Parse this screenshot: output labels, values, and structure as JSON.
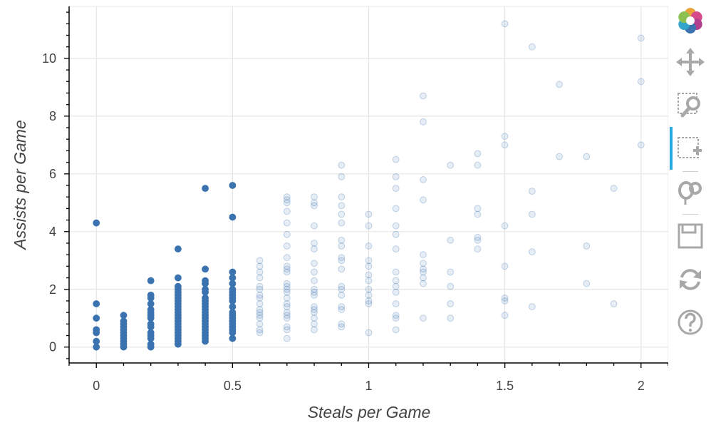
{
  "chart_data": {
    "type": "scatter",
    "title": "",
    "xlabel": "Steals per Game",
    "ylabel": "Assists per Game",
    "xlim": [
      -0.1,
      2.1
    ],
    "ylim": [
      -0.55,
      11.8
    ],
    "x_ticks": [
      0,
      0.5,
      1,
      1.5,
      2
    ],
    "x_tick_labels": [
      "0",
      "0.5",
      "1",
      "1.5",
      "2"
    ],
    "y_ticks": [
      0,
      2,
      4,
      6,
      8,
      10
    ],
    "y_tick_labels": [
      "0",
      "2",
      "4",
      "6",
      "8",
      "10"
    ],
    "grid": true,
    "legend": "none",
    "series": [
      {
        "role": "selected",
        "color": "#3a73b0",
        "opacity": 1.0,
        "points": [
          [
            0,
            0
          ],
          [
            0,
            0.2
          ],
          [
            0,
            0.5
          ],
          [
            0,
            0.6
          ],
          [
            0,
            1.0
          ],
          [
            0,
            1.5
          ],
          [
            0,
            4.3
          ],
          [
            0.1,
            0
          ],
          [
            0.1,
            0.1
          ],
          [
            0.1,
            0.2
          ],
          [
            0.1,
            0.3
          ],
          [
            0.1,
            0.4
          ],
          [
            0.1,
            0.5
          ],
          [
            0.1,
            0.6
          ],
          [
            0.1,
            0.7
          ],
          [
            0.1,
            0.8
          ],
          [
            0.1,
            0.9
          ],
          [
            0.1,
            1.1
          ],
          [
            0.2,
            0
          ],
          [
            0.2,
            0.1
          ],
          [
            0.2,
            0.3
          ],
          [
            0.2,
            0.4
          ],
          [
            0.2,
            0.5
          ],
          [
            0.2,
            0.7
          ],
          [
            0.2,
            0.8
          ],
          [
            0.2,
            1.0
          ],
          [
            0.2,
            1.1
          ],
          [
            0.2,
            1.2
          ],
          [
            0.2,
            1.3
          ],
          [
            0.2,
            1.5
          ],
          [
            0.2,
            1.7
          ],
          [
            0.2,
            1.8
          ],
          [
            0.2,
            2.3
          ],
          [
            0.3,
            0.1
          ],
          [
            0.3,
            0.2
          ],
          [
            0.3,
            0.3
          ],
          [
            0.3,
            0.4
          ],
          [
            0.3,
            0.5
          ],
          [
            0.3,
            0.6
          ],
          [
            0.3,
            0.7
          ],
          [
            0.3,
            0.8
          ],
          [
            0.3,
            0.9
          ],
          [
            0.3,
            1.0
          ],
          [
            0.3,
            1.1
          ],
          [
            0.3,
            1.2
          ],
          [
            0.3,
            1.3
          ],
          [
            0.3,
            1.4
          ],
          [
            0.3,
            1.5
          ],
          [
            0.3,
            1.6
          ],
          [
            0.3,
            1.7
          ],
          [
            0.3,
            1.8
          ],
          [
            0.3,
            1.9
          ],
          [
            0.3,
            2.0
          ],
          [
            0.3,
            2.1
          ],
          [
            0.3,
            2.4
          ],
          [
            0.3,
            3.4
          ],
          [
            0.4,
            0.2
          ],
          [
            0.4,
            0.3
          ],
          [
            0.4,
            0.4
          ],
          [
            0.4,
            0.5
          ],
          [
            0.4,
            0.6
          ],
          [
            0.4,
            0.7
          ],
          [
            0.4,
            0.8
          ],
          [
            0.4,
            0.9
          ],
          [
            0.4,
            1.0
          ],
          [
            0.4,
            1.1
          ],
          [
            0.4,
            1.2
          ],
          [
            0.4,
            1.3
          ],
          [
            0.4,
            1.4
          ],
          [
            0.4,
            1.5
          ],
          [
            0.4,
            1.6
          ],
          [
            0.4,
            1.7
          ],
          [
            0.4,
            1.9
          ],
          [
            0.4,
            2.0
          ],
          [
            0.4,
            2.2
          ],
          [
            0.4,
            2.3
          ],
          [
            0.4,
            2.7
          ],
          [
            0.4,
            5.5
          ],
          [
            0.5,
            0.3
          ],
          [
            0.5,
            0.5
          ],
          [
            0.5,
            0.6
          ],
          [
            0.5,
            0.7
          ],
          [
            0.5,
            0.8
          ],
          [
            0.5,
            0.9
          ],
          [
            0.5,
            1.0
          ],
          [
            0.5,
            1.1
          ],
          [
            0.5,
            1.2
          ],
          [
            0.5,
            1.4
          ],
          [
            0.5,
            1.6
          ],
          [
            0.5,
            1.7
          ],
          [
            0.5,
            1.8
          ],
          [
            0.5,
            1.9
          ],
          [
            0.5,
            2.0
          ],
          [
            0.5,
            2.2
          ],
          [
            0.5,
            2.4
          ],
          [
            0.5,
            2.6
          ],
          [
            0.5,
            4.5
          ],
          [
            0.5,
            5.6
          ]
        ]
      },
      {
        "role": "unselected",
        "color": "#3a73b0",
        "opacity": 0.13,
        "points": [
          [
            0.6,
            0.5
          ],
          [
            0.6,
            0.6
          ],
          [
            0.6,
            0.8
          ],
          [
            0.6,
            1.0
          ],
          [
            0.6,
            1.1
          ],
          [
            0.6,
            1.2
          ],
          [
            0.6,
            1.3
          ],
          [
            0.6,
            1.5
          ],
          [
            0.6,
            1.7
          ],
          [
            0.6,
            1.8
          ],
          [
            0.6,
            2.0
          ],
          [
            0.6,
            2.1
          ],
          [
            0.6,
            2.4
          ],
          [
            0.6,
            2.6
          ],
          [
            0.6,
            2.8
          ],
          [
            0.6,
            3.0
          ],
          [
            0.7,
            0.3
          ],
          [
            0.7,
            0.6
          ],
          [
            0.7,
            0.7
          ],
          [
            0.7,
            1.0
          ],
          [
            0.7,
            1.1
          ],
          [
            0.7,
            1.2
          ],
          [
            0.7,
            1.4
          ],
          [
            0.7,
            1.5
          ],
          [
            0.7,
            1.7
          ],
          [
            0.7,
            1.9
          ],
          [
            0.7,
            2.0
          ],
          [
            0.7,
            2.1
          ],
          [
            0.7,
            2.2
          ],
          [
            0.7,
            2.6
          ],
          [
            0.7,
            2.7
          ],
          [
            0.7,
            2.8
          ],
          [
            0.7,
            3.1
          ],
          [
            0.7,
            3.5
          ],
          [
            0.7,
            3.9
          ],
          [
            0.7,
            4.3
          ],
          [
            0.7,
            4.7
          ],
          [
            0.7,
            5.0
          ],
          [
            0.7,
            5.1
          ],
          [
            0.7,
            5.2
          ],
          [
            0.8,
            0.6
          ],
          [
            0.8,
            0.8
          ],
          [
            0.8,
            1.0
          ],
          [
            0.8,
            1.2
          ],
          [
            0.8,
            1.3
          ],
          [
            0.8,
            1.4
          ],
          [
            0.8,
            1.8
          ],
          [
            0.8,
            1.9
          ],
          [
            0.8,
            2.0
          ],
          [
            0.8,
            2.3
          ],
          [
            0.8,
            2.6
          ],
          [
            0.8,
            2.9
          ],
          [
            0.8,
            3.4
          ],
          [
            0.8,
            3.6
          ],
          [
            0.8,
            4.2
          ],
          [
            0.8,
            4.9
          ],
          [
            0.8,
            5.0
          ],
          [
            0.8,
            5.2
          ],
          [
            0.9,
            0.7
          ],
          [
            0.9,
            0.8
          ],
          [
            0.9,
            1.3
          ],
          [
            0.9,
            1.4
          ],
          [
            0.9,
            1.8
          ],
          [
            0.9,
            2.0
          ],
          [
            0.9,
            2.1
          ],
          [
            0.9,
            2.7
          ],
          [
            0.9,
            3.0
          ],
          [
            0.9,
            3.1
          ],
          [
            0.9,
            3.5
          ],
          [
            0.9,
            3.7
          ],
          [
            0.9,
            4.3
          ],
          [
            0.9,
            4.6
          ],
          [
            0.9,
            4.9
          ],
          [
            0.9,
            5.2
          ],
          [
            0.9,
            5.9
          ],
          [
            0.9,
            6.3
          ],
          [
            1.0,
            0.5
          ],
          [
            1.0,
            1.5
          ],
          [
            1.0,
            1.6
          ],
          [
            1.0,
            1.8
          ],
          [
            1.0,
            2.0
          ],
          [
            1.0,
            2.3
          ],
          [
            1.0,
            2.5
          ],
          [
            1.0,
            2.8
          ],
          [
            1.0,
            3.0
          ],
          [
            1.0,
            3.5
          ],
          [
            1.0,
            4.2
          ],
          [
            1.0,
            4.6
          ],
          [
            1.1,
            0.6
          ],
          [
            1.1,
            1.0
          ],
          [
            1.1,
            1.1
          ],
          [
            1.1,
            1.5
          ],
          [
            1.1,
            1.9
          ],
          [
            1.1,
            2.1
          ],
          [
            1.1,
            2.3
          ],
          [
            1.1,
            2.6
          ],
          [
            1.1,
            3.4
          ],
          [
            1.1,
            3.9
          ],
          [
            1.1,
            4.2
          ],
          [
            1.1,
            4.8
          ],
          [
            1.1,
            5.5
          ],
          [
            1.1,
            5.9
          ],
          [
            1.1,
            6.5
          ],
          [
            1.2,
            1.0
          ],
          [
            1.2,
            2.2
          ],
          [
            1.2,
            2.4
          ],
          [
            1.2,
            2.6
          ],
          [
            1.2,
            2.7
          ],
          [
            1.2,
            2.9
          ],
          [
            1.2,
            3.2
          ],
          [
            1.2,
            5.1
          ],
          [
            1.2,
            5.8
          ],
          [
            1.2,
            7.8
          ],
          [
            1.2,
            8.7
          ],
          [
            1.3,
            1.0
          ],
          [
            1.3,
            1.5
          ],
          [
            1.3,
            2.1
          ],
          [
            1.3,
            2.6
          ],
          [
            1.3,
            3.7
          ],
          [
            1.3,
            6.3
          ],
          [
            1.4,
            3.4
          ],
          [
            1.4,
            3.7
          ],
          [
            1.4,
            3.8
          ],
          [
            1.4,
            4.6
          ],
          [
            1.4,
            4.8
          ],
          [
            1.4,
            6.3
          ],
          [
            1.4,
            6.7
          ],
          [
            1.5,
            1.1
          ],
          [
            1.5,
            1.6
          ],
          [
            1.5,
            1.7
          ],
          [
            1.5,
            2.8
          ],
          [
            1.5,
            4.2
          ],
          [
            1.5,
            7.0
          ],
          [
            1.5,
            7.3
          ],
          [
            1.5,
            11.2
          ],
          [
            1.6,
            1.4
          ],
          [
            1.6,
            3.3
          ],
          [
            1.6,
            4.6
          ],
          [
            1.6,
            5.4
          ],
          [
            1.6,
            10.4
          ],
          [
            1.7,
            6.6
          ],
          [
            1.7,
            9.1
          ],
          [
            1.8,
            2.2
          ],
          [
            1.8,
            3.5
          ],
          [
            1.8,
            6.6
          ],
          [
            1.9,
            1.5
          ],
          [
            1.9,
            5.5
          ],
          [
            2.0,
            7.0
          ],
          [
            2.0,
            9.2
          ],
          [
            2.0,
            10.7
          ]
        ]
      }
    ]
  },
  "toolbar": {
    "tools": [
      {
        "name": "bokeh-logo",
        "icon": "bokeh-logo-icon"
      },
      {
        "name": "pan",
        "icon": "pan-icon"
      },
      {
        "name": "box-zoom",
        "icon": "box-zoom-icon"
      },
      {
        "name": "box-select",
        "icon": "box-select-icon",
        "active": true
      },
      {
        "name": "lasso-select",
        "icon": "lasso-select-icon"
      },
      {
        "name": "save",
        "icon": "save-icon"
      },
      {
        "name": "reset",
        "icon": "reset-icon"
      },
      {
        "name": "help",
        "icon": "help-icon"
      }
    ],
    "active_color": "#26aae1",
    "icon_color": "#a8a8a8"
  }
}
